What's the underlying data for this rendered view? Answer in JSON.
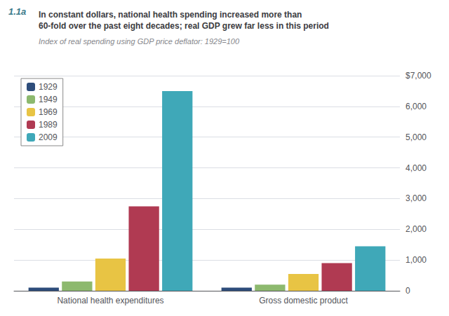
{
  "chart_data": {
    "type": "bar",
    "title": "In constant dollars, national health spending increased more than\n60-fold over the past eight decades; real GDP grew far less in this period",
    "subtitle": "Index of real spending using GDP price deflator: 1929=100",
    "annotations": [
      "1.1a"
    ],
    "categories": [
      "National health expenditures",
      "Gross domestic product"
    ],
    "series": [
      {
        "name": "1929",
        "color": "#2e4d7b",
        "values": [
          100,
          100
        ]
      },
      {
        "name": "1949",
        "color": "#8db96e",
        "values": [
          300,
          200
        ]
      },
      {
        "name": "1969",
        "color": "#e8c444",
        "values": [
          1050,
          550
        ]
      },
      {
        "name": "1989",
        "color": "#b03a52",
        "values": [
          2750,
          900
        ]
      },
      {
        "name": "2009",
        "color": "#3fa8b8",
        "values": [
          6500,
          1450
        ]
      }
    ],
    "ylim": [
      0,
      7000
    ],
    "yticks": [
      0,
      {
        "value": 1000,
        "label": "1,000"
      },
      {
        "value": 2000,
        "label": "2,000"
      },
      {
        "value": 3000,
        "label": "3,000"
      },
      {
        "value": 4000,
        "label": "4,000"
      },
      {
        "value": 5000,
        "label": "5,000"
      },
      {
        "value": 6000,
        "label": "6,000"
      },
      {
        "value": 7000,
        "label": "$7,000"
      }
    ],
    "grid": true,
    "legend": "upper left"
  }
}
